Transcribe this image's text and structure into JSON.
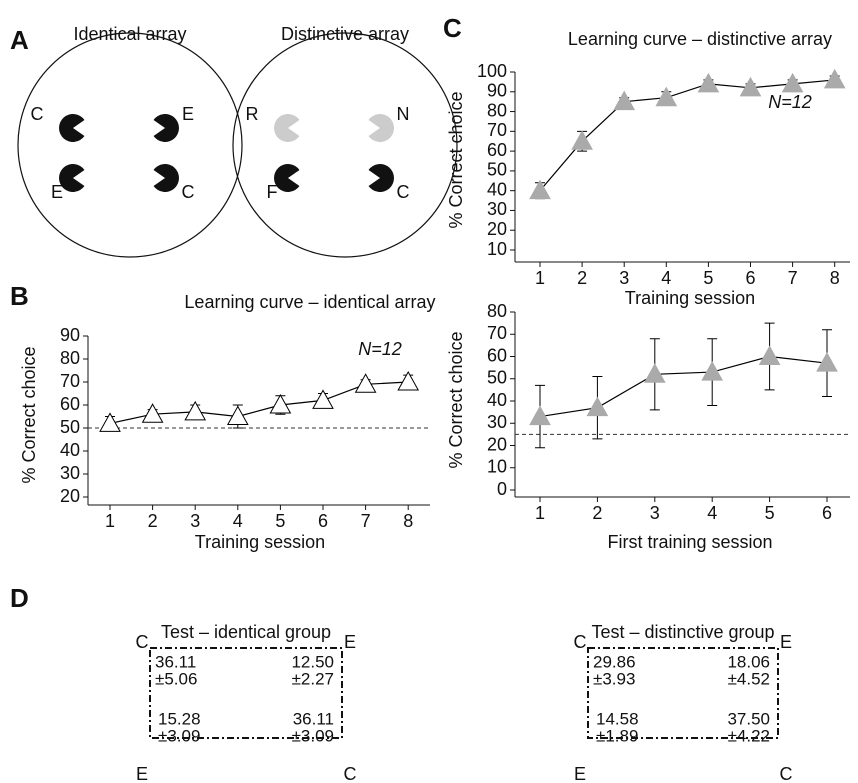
{
  "panel_labels": [
    "A",
    "B",
    "C",
    "D"
  ],
  "panel_a": [
    {
      "title": "Identical array",
      "labels": [
        "C",
        "E",
        "E",
        "C"
      ]
    },
    {
      "title": "Distinctive array",
      "labels": [
        "R",
        "N",
        "F",
        "C"
      ]
    }
  ],
  "chart_data": [
    {
      "type": "line",
      "title": "Learning curve – identical array",
      "x_label": "Training session",
      "y_label": "% Correct choice",
      "annotation": "N=12",
      "categories": [
        "1",
        "2",
        "3",
        "4",
        "5",
        "6",
        "7",
        "8"
      ],
      "values": [
        52,
        56,
        57,
        55,
        60,
        62,
        69,
        70
      ],
      "errors": [
        3,
        2,
        3,
        5,
        4,
        3,
        2,
        3
      ],
      "color": "#000000",
      "marker_fill": "#ffffff",
      "reference_line": 50,
      "ylim": [
        20,
        90
      ],
      "yticks": [
        20,
        30,
        40,
        50,
        60,
        70,
        80,
        90
      ]
    },
    {
      "type": "line",
      "title": "Learning curve – distinctive array",
      "x_label": "Training session",
      "y_label": "% Correct choice",
      "annotation": "N=12",
      "categories": [
        "1",
        "2",
        "3",
        "4",
        "5",
        "6",
        "7",
        "8"
      ],
      "values": [
        40,
        65,
        85,
        87,
        94,
        92,
        94,
        96
      ],
      "errors": [
        4,
        5,
        2,
        3,
        2,
        2,
        2,
        2
      ],
      "color": "#000000",
      "marker_fill": "#aaaaaa",
      "ylim": [
        10,
        100
      ],
      "yticks": [
        10,
        20,
        30,
        40,
        50,
        60,
        70,
        80,
        90,
        100
      ]
    },
    {
      "type": "line",
      "x_label": "First training session",
      "y_label": "% Correct choice",
      "categories": [
        "1",
        "2",
        "3",
        "4",
        "5",
        "6"
      ],
      "values": [
        33,
        37,
        52,
        53,
        60,
        57
      ],
      "errors": [
        14,
        14,
        16,
        15,
        15,
        15
      ],
      "color": "#000000",
      "marker_fill": "#aaaaaa",
      "reference_line": 25,
      "ylim": [
        0,
        80
      ],
      "yticks": [
        0,
        10,
        20,
        30,
        40,
        50,
        60,
        70,
        80
      ]
    }
  ],
  "panel_d": [
    {
      "title": "Test – identical group",
      "corners": [
        "C",
        "E",
        "E",
        "C"
      ],
      "cells": [
        [
          "36.11",
          "±5.06"
        ],
        [
          "12.50",
          "±2.27"
        ],
        [
          "15.28",
          "±3.09"
        ],
        [
          "36.11",
          "±3.09"
        ]
      ]
    },
    {
      "title": "Test – distinctive group",
      "corners": [
        "C",
        "E",
        "E",
        "C"
      ],
      "cells": [
        [
          "29.86",
          "±3.93"
        ],
        [
          "18.06",
          "±4.52"
        ],
        [
          "14.58",
          "±1.89"
        ],
        [
          "37.50",
          "±4.22"
        ]
      ]
    }
  ]
}
